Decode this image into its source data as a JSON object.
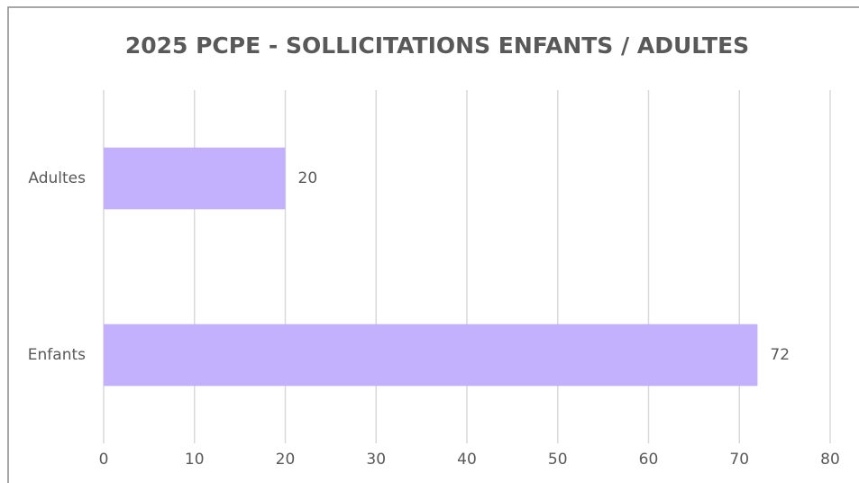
{
  "chart_data": {
    "type": "hbar",
    "title": "2025 PCPE - SOLLICITATIONS ENFANTS / ADULTES",
    "categories": [
      "Adultes",
      "Enfants"
    ],
    "values": [
      20,
      72
    ],
    "color": "#c3b1fd",
    "xlim": [
      0,
      80
    ],
    "xticks": [
      0,
      10,
      20,
      30,
      40,
      50,
      60,
      70,
      80
    ],
    "grid": true
  }
}
